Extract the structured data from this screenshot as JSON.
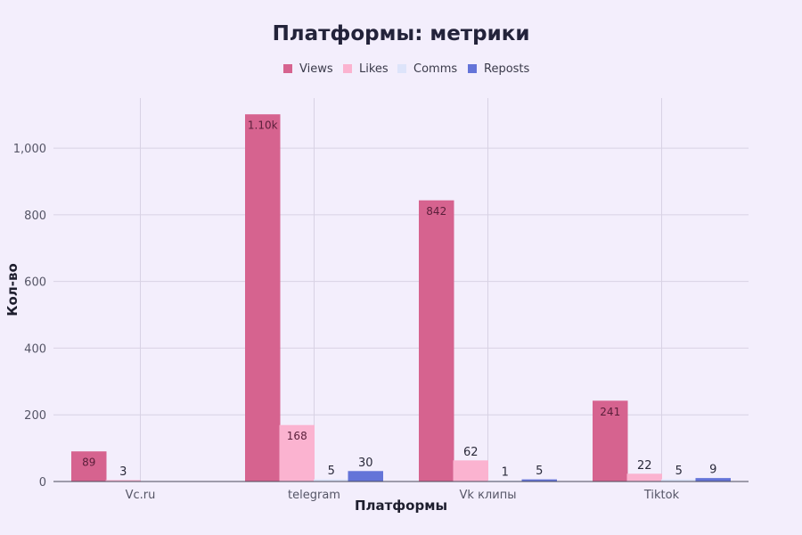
{
  "chart_data": {
    "type": "bar",
    "title": "Платформы: метрики",
    "xlabel": "Платформы",
    "ylabel": "Кол-во",
    "categories": [
      "Vc.ru",
      "telegram",
      "Vk клипы",
      "Tiktok"
    ],
    "series": [
      {
        "name": "Views",
        "color": "#d6638f",
        "values": [
          89,
          1100,
          842,
          241
        ],
        "labels": [
          "89",
          "1.10k",
          "842",
          "241"
        ]
      },
      {
        "name": "Likes",
        "color": "#fbb3d0",
        "values": [
          3,
          168,
          62,
          22
        ],
        "labels": [
          "3",
          "168",
          "62",
          "22"
        ]
      },
      {
        "name": "Comms",
        "color": "#dde4fa",
        "values": [
          0,
          5,
          1,
          5
        ],
        "labels": [
          "",
          "5",
          "1",
          "5"
        ]
      },
      {
        "name": "Reposts",
        "color": "#6474d8",
        "values": [
          0,
          30,
          5,
          9
        ],
        "labels": [
          "",
          "30",
          "5",
          "9"
        ]
      }
    ],
    "ylim": [
      0,
      1150
    ],
    "yticks": [
      0,
      200,
      400,
      600,
      800,
      1000
    ],
    "ytick_labels": [
      "0",
      "200",
      "400",
      "600",
      "800",
      "1,000"
    ],
    "grid": true,
    "legend_position": "top-center"
  }
}
